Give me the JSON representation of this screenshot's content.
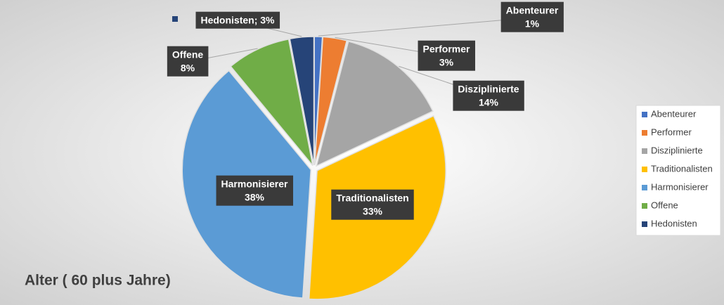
{
  "chart_data": {
    "type": "pie",
    "title": "Alter ( 60 plus Jahre)",
    "categories": [
      "Abenteurer",
      "Performer",
      "Disziplinierte",
      "Traditionalisten",
      "Harmonisierer",
      "Offene",
      "Hedonisten"
    ],
    "values": [
      1,
      3,
      14,
      33,
      38,
      8,
      3
    ],
    "value_labels": [
      "1%",
      "3%",
      "14%",
      "33%",
      "38%",
      "8%",
      "Hedonisten; 3%"
    ],
    "colors": [
      "#4472c4",
      "#ed7d31",
      "#a5a5a5",
      "#ffc000",
      "#5b9bd5",
      "#70ad47",
      "#264478"
    ],
    "legend": "right"
  }
}
